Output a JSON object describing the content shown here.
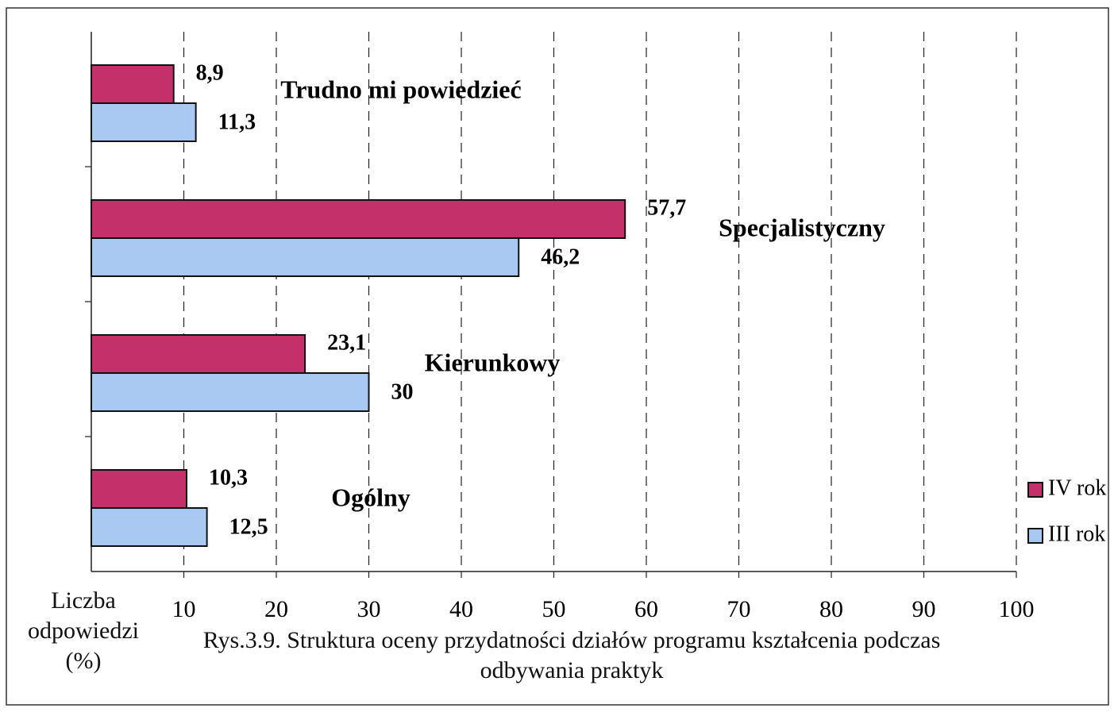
{
  "chart_data": {
    "type": "bar",
    "orientation": "horizontal",
    "title": "Rys.3.9. Struktura oceny przydatności działów programu kształcenia podczas odbywania praktyk",
    "xlabel": "Liczba odpowiedzi (%)",
    "categories": [
      "Trudno mi powiedzieć",
      "Specjalistyczny",
      "Kierunkowy",
      "Ogólny"
    ],
    "series": [
      {
        "name": "IV rok",
        "color": "#c4306a",
        "values": [
          8.9,
          57.7,
          23.1,
          10.3
        ],
        "value_labels": [
          "8,9",
          "57,7",
          "23,1",
          "10,3"
        ]
      },
      {
        "name": "III rok",
        "color": "#a9c9f2",
        "values": [
          11.3,
          46.2,
          30,
          12.5
        ],
        "value_labels": [
          "11,3",
          "46,2",
          "30",
          "12,5"
        ]
      }
    ],
    "xlim": [
      0,
      100
    ],
    "xticks": [
      10,
      20,
      30,
      40,
      50,
      60,
      70,
      80,
      90,
      100
    ],
    "grid": true,
    "legend": "right"
  }
}
